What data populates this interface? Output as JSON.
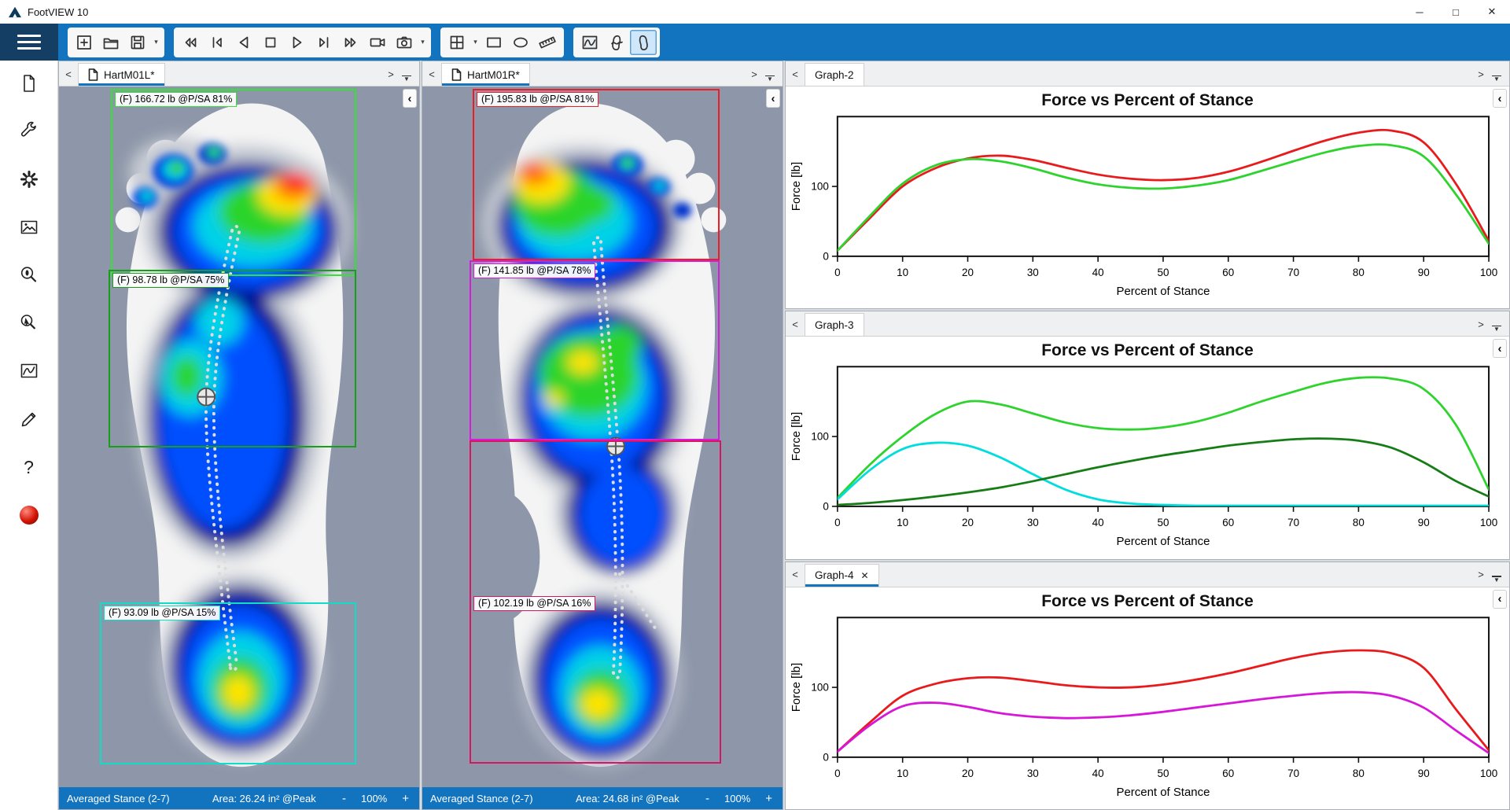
{
  "titlebar": {
    "title": "FootVIEW 10"
  },
  "icons": {
    "minimize": "─",
    "maximize": "□",
    "close": "✕",
    "tab_prev": "<",
    "tab_next": ">",
    "collapse": "‹",
    "caret_down": "▾",
    "tab_close": "✕",
    "help": "?"
  },
  "toolbar": {
    "file_buttons": [
      "add-view",
      "open-file",
      "save-file"
    ],
    "playback_buttons": [
      "rewind",
      "step-back",
      "play-reverse",
      "stop",
      "play",
      "step-forward",
      "fast-forward",
      "record-video",
      "snapshot"
    ],
    "draw_buttons": [
      "grid-layout",
      "rectangle-tool",
      "ellipse-tool",
      "ruler-tool"
    ],
    "view_buttons": [
      "pressure-curve-view",
      "foot-left-view",
      "foot-right-view"
    ],
    "selected_view": "foot-right-view"
  },
  "sidebar": {
    "items": [
      "document",
      "tools",
      "settings",
      "image",
      "zoom-analysis",
      "probe",
      "chart",
      "annotate",
      "help",
      "record"
    ]
  },
  "foot_panels": [
    {
      "tab": "HartM01L*",
      "regions": [
        {
          "label": "(F) 166.72 lb @P/SA 81%",
          "color": "#35e135"
        },
        {
          "label": "(F) 98.78 lb @P/SA 75%",
          "color": "#17a017"
        },
        {
          "label": "(F) 93.09 lb @P/SA 15%",
          "color": "#12dcc6"
        }
      ],
      "status": {
        "mode": "Averaged Stance (2-7)",
        "area": "Area: 26.24 in² @Peak",
        "zoom_out": "-",
        "zoom_level": "100%",
        "zoom_in": "+"
      }
    },
    {
      "tab": "HartM01R*",
      "regions": [
        {
          "label": "(F) 195.83 lb @P/SA 81%",
          "color": "#ee1c25"
        },
        {
          "label": "(F) 141.85 lb @P/SA 78%",
          "color": "#d81bd8"
        },
        {
          "label": "(F) 102.19 lb @P/SA 16%",
          "color": "#d81560"
        }
      ],
      "status": {
        "mode": "Averaged Stance (2-7)",
        "area": "Area: 24.68 in² @Peak",
        "zoom_out": "-",
        "zoom_level": "100%",
        "zoom_in": "+"
      }
    }
  ],
  "graphs": [
    {
      "tab": "Graph-2",
      "chart": {
        "type": "line",
        "title": "Force vs Percent of Stance",
        "xlabel": "Percent of Stance",
        "ylabel": "Force [lb]",
        "xlim": [
          0,
          100
        ],
        "ylim": [
          0,
          200
        ],
        "xticks": [
          0,
          10,
          20,
          30,
          40,
          50,
          60,
          70,
          80,
          90,
          100
        ],
        "yticks": [
          0,
          100
        ],
        "x_start": 0,
        "x_step": 5,
        "series": [
          {
            "name": "red-curve",
            "color": "#e81a1c",
            "values": [
              8,
              55,
              100,
              126,
              140,
              144,
              138,
              127,
              117,
              111,
              109,
              112,
              121,
              135,
              151,
              166,
              177,
              180,
              163,
              103,
              22
            ]
          },
          {
            "name": "green-curve",
            "color": "#2ed32e",
            "values": [
              8,
              58,
              104,
              130,
              139,
              136,
              126,
              113,
              103,
              98,
              97,
              101,
              109,
              122,
              136,
              149,
              158,
              159,
              143,
              88,
              18
            ]
          }
        ]
      }
    },
    {
      "tab": "Graph-3",
      "chart": {
        "type": "line",
        "title": "Force vs Percent of Stance",
        "xlabel": "Percent of Stance",
        "ylabel": "Force [lb]",
        "xlim": [
          0,
          100
        ],
        "ylim": [
          0,
          200
        ],
        "xticks": [
          0,
          10,
          20,
          30,
          40,
          50,
          60,
          70,
          80,
          90,
          100
        ],
        "yticks": [
          0,
          100
        ],
        "x_start": 0,
        "x_step": 5,
        "series": [
          {
            "name": "bright-green-curve",
            "color": "#2ed32e",
            "values": [
              12,
              60,
              100,
              132,
              150,
              146,
              133,
              120,
              112,
              110,
              113,
              121,
              134,
              150,
              164,
              177,
              184,
              183,
              168,
              116,
              24
            ]
          },
          {
            "name": "cyan-curve",
            "color": "#00dddd",
            "values": [
              10,
              52,
              82,
              91,
              87,
              70,
              46,
              24,
              10,
              4,
              2,
              1,
              1,
              1,
              1,
              1,
              1,
              1,
              1,
              1,
              1
            ]
          },
          {
            "name": "dark-green-curve",
            "color": "#167d16",
            "values": [
              2,
              5,
              9,
              14,
              20,
              27,
              36,
              46,
              56,
              65,
              73,
              80,
              87,
              92,
              96,
              97,
              94,
              84,
              63,
              36,
              14
            ]
          }
        ]
      }
    },
    {
      "tab": "Graph-4",
      "chart": {
        "type": "line",
        "title": "Force vs Percent of Stance",
        "xlabel": "Percent of Stance",
        "ylabel": "Force [lb]",
        "xlim": [
          0,
          100
        ],
        "ylim": [
          0,
          200
        ],
        "xticks": [
          0,
          10,
          20,
          30,
          40,
          50,
          60,
          70,
          80,
          90,
          100
        ],
        "yticks": [
          0,
          100
        ],
        "x_start": 0,
        "x_step": 5,
        "series": [
          {
            "name": "red-curve",
            "color": "#e81a1c",
            "values": [
              8,
              50,
              88,
              105,
              113,
              114,
              109,
              103,
              100,
              100,
              104,
              111,
              120,
              131,
              142,
              150,
              153,
              149,
              128,
              68,
              10
            ]
          },
          {
            "name": "magenta-curve",
            "color": "#d816d8",
            "values": [
              8,
              46,
              73,
              78,
              72,
              63,
              58,
              56,
              57,
              60,
              65,
              71,
              77,
              83,
              88,
              92,
              93,
              88,
              71,
              38,
              6
            ]
          }
        ]
      }
    }
  ]
}
